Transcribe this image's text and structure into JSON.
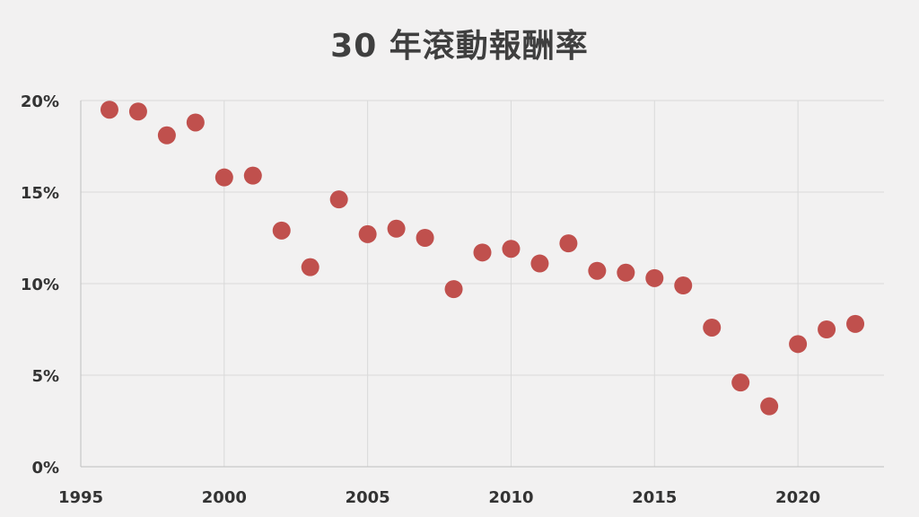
{
  "chart_data": {
    "type": "scatter",
    "title": "30 年滾動報酬率",
    "xlabel": "",
    "ylabel": "",
    "xlim": [
      1995,
      2023
    ],
    "ylim": [
      0,
      0.2
    ],
    "xticks": [
      1995,
      2000,
      2005,
      2010,
      2015,
      2020
    ],
    "xtick_labels": [
      "1995",
      "2000",
      "2005",
      "2010",
      "2015",
      "2020"
    ],
    "yticks": [
      0,
      0.05,
      0.1,
      0.15,
      0.2
    ],
    "ytick_labels": [
      "0%",
      "5%",
      "10%",
      "15%",
      "20%"
    ],
    "grid": true,
    "legend": "none",
    "marker_color": "#c0504d",
    "series": [
      {
        "x": [
          1996,
          1997,
          1998,
          1999,
          2000,
          2001,
          2002,
          2003,
          2004,
          2005,
          2006,
          2007,
          2008,
          2009,
          2010,
          2011,
          2012,
          2013,
          2014,
          2015,
          2016,
          2017,
          2018,
          2019,
          2020,
          2021,
          2022
        ],
        "y": [
          0.195,
          0.194,
          0.181,
          0.188,
          0.158,
          0.159,
          0.129,
          0.109,
          0.146,
          0.127,
          0.13,
          0.125,
          0.097,
          0.117,
          0.119,
          0.111,
          0.122,
          0.107,
          0.106,
          0.103,
          0.099,
          0.076,
          0.046,
          0.033,
          0.067,
          0.075,
          0.078
        ]
      }
    ]
  }
}
